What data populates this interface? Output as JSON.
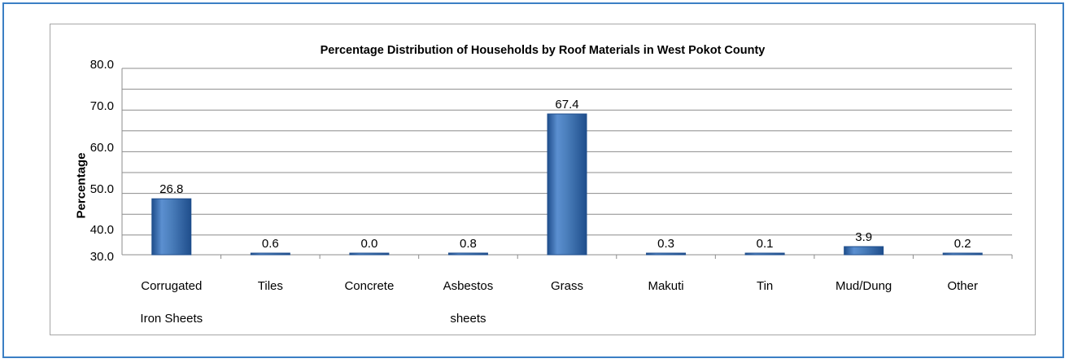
{
  "chart_data": {
    "type": "bar",
    "title": "Percentage Distribution of Households by Roof Materials  in West Pokot County",
    "xlabel": "",
    "ylabel": "Percentage",
    "categories": [
      "Corrugated Iron Sheets",
      "Tiles",
      "Concrete",
      "Asbestos sheets",
      "Grass",
      "Makuti",
      "Tin",
      "Mud/Dung",
      "Other"
    ],
    "values": [
      26.8,
      0.6,
      0.0,
      0.8,
      67.4,
      0.3,
      0.1,
      3.9,
      0.2
    ],
    "data_labels": [
      "26.8",
      "0.6",
      "0.0",
      "0.8",
      "67.4",
      "0.3",
      "0.1",
      "3.9",
      "0.2"
    ],
    "y_tick_labels": [
      "30.0",
      "40.0",
      "50.0",
      "60.0",
      "70.0",
      "80.0"
    ],
    "grid": true,
    "legend": "none",
    "colors": {
      "bar": "#4a7ebb",
      "bar_dark": "#1f4e8c",
      "grid": "#8c8c8c",
      "frame": "#3b7fc4"
    }
  }
}
